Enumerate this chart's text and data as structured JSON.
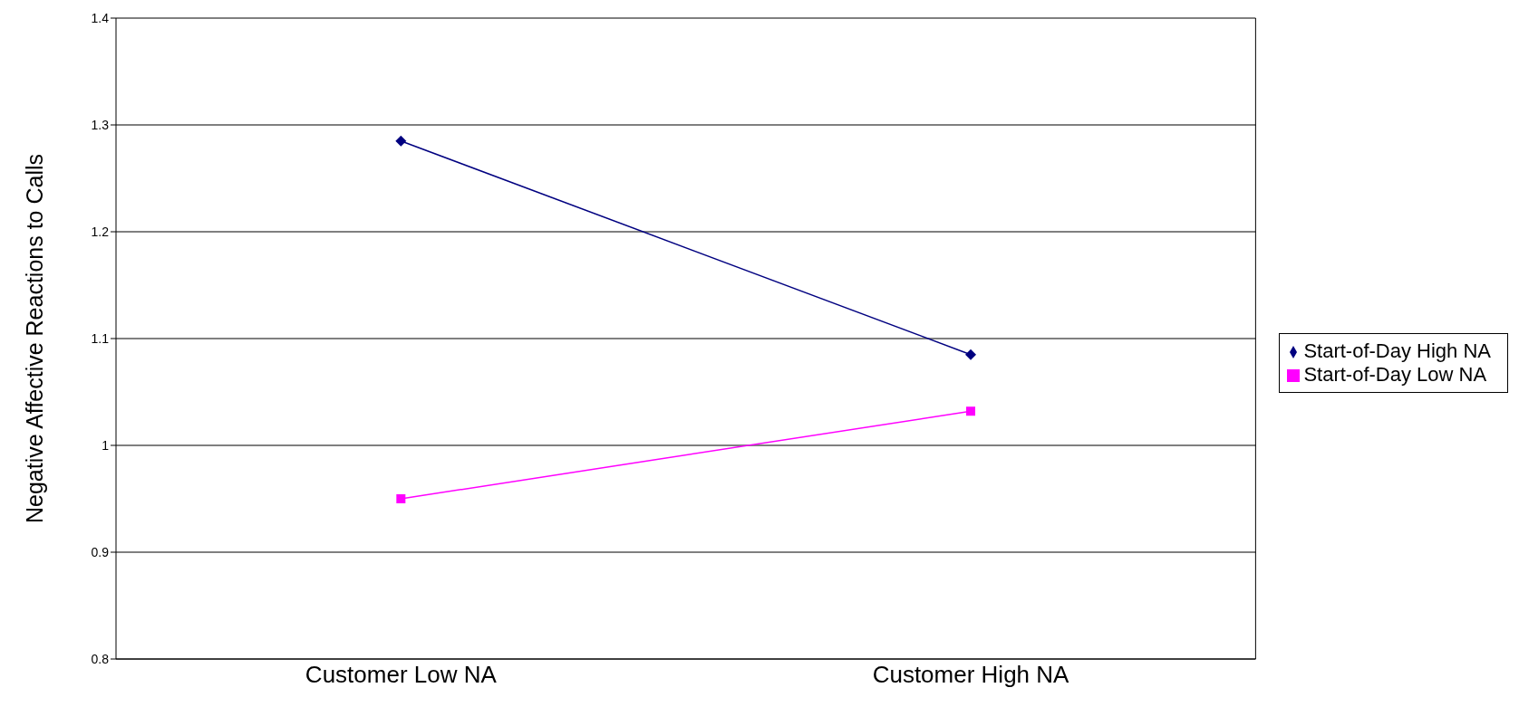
{
  "chart_data": {
    "type": "line",
    "ylabel": "Negative Affective Reactions to Calls",
    "categories": [
      "Customer Low NA",
      "Customer High NA"
    ],
    "series": [
      {
        "name": "Start-of-Day High NA",
        "color": "#000080",
        "marker": "diamond",
        "values": [
          1.285,
          1.085
        ]
      },
      {
        "name": "Start-of-Day Low NA",
        "color": "#ff00ff",
        "marker": "square",
        "values": [
          0.95,
          1.032
        ]
      }
    ],
    "ylim": [
      0.8,
      1.4
    ],
    "yticks": [
      0.8,
      0.9,
      1,
      1.1,
      1.2,
      1.3,
      1.4
    ],
    "grid": "y",
    "legend": "right",
    "line_style": "solid"
  }
}
